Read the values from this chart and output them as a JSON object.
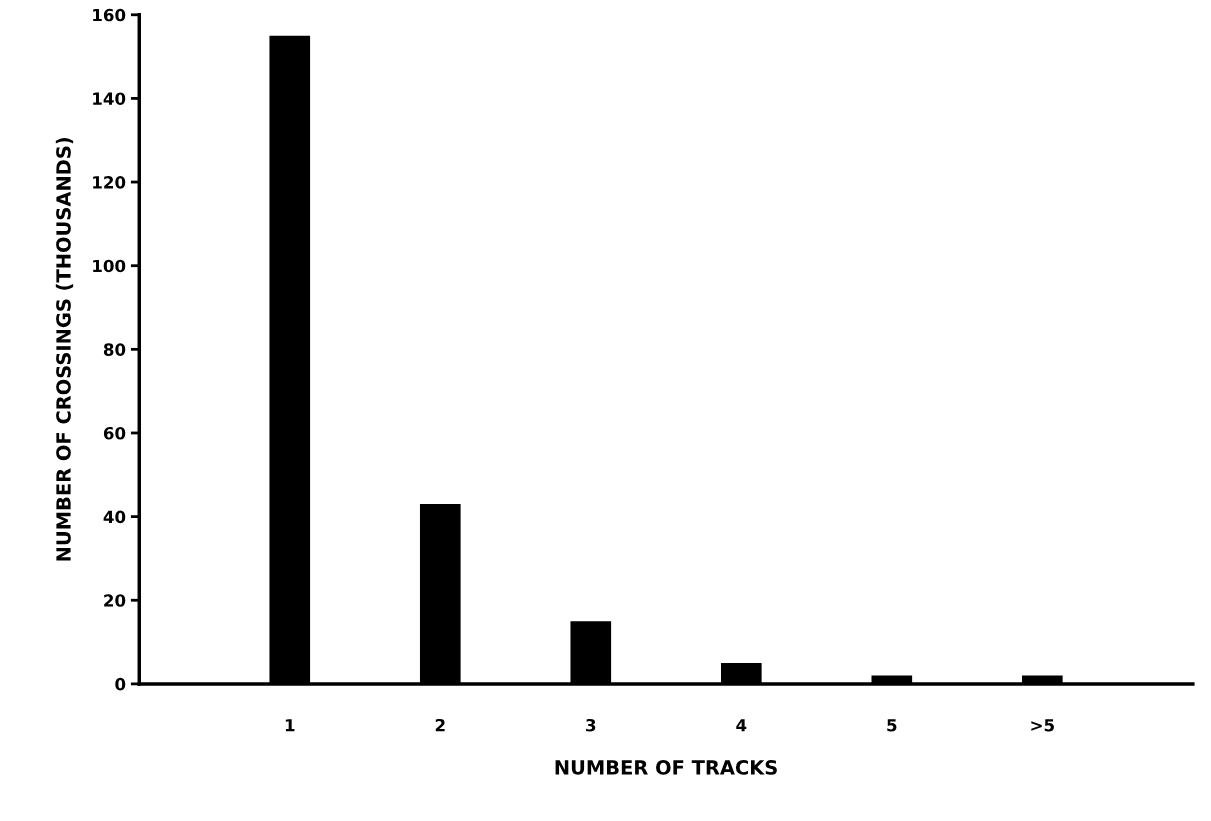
{
  "chart_data": {
    "type": "bar",
    "xlabel": "NUMBER OF TRACKS",
    "ylabel": "NUMBER OF CROSSINGS (THOUSANDS)",
    "categories": [
      "1",
      "2",
      "3",
      "4",
      "5",
      ">5"
    ],
    "values": [
      155,
      43,
      15,
      5,
      2,
      2
    ],
    "color": "#000000",
    "ylim": [
      0,
      160
    ],
    "yticks": [
      0,
      20,
      40,
      60,
      80,
      100,
      120,
      140,
      160
    ],
    "grid": false
  }
}
